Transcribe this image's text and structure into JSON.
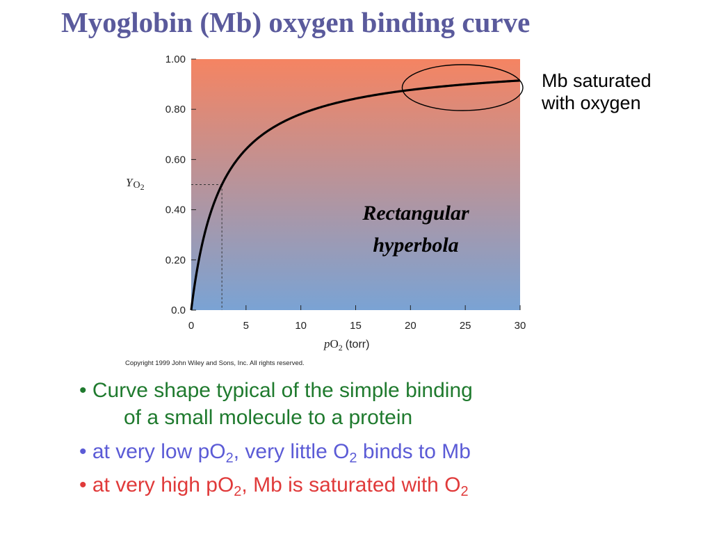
{
  "slide": {
    "title": "Myoglobin (Mb) oxygen binding curve",
    "title_color": "#5a5a9c",
    "side_note_line1": "Mb saturated",
    "side_note_line2": "with oxygen",
    "copyright": "Copyright 1999 John Wiley and Sons, Inc. All rights reserved."
  },
  "bullets": [
    {
      "marker": "•",
      "color": "#1f7a2e",
      "line1": "Curve shape typical of the simple binding",
      "line2": "of a small molecule to a protein"
    },
    {
      "marker": "•",
      "color": "#5b5bd6",
      "t1": "at very low pO",
      "s1": "2",
      "t2": ", very little O",
      "s2": "2",
      "t3": " binds to Mb"
    },
    {
      "marker": "•",
      "color": "#e03a3a",
      "t1": "at very high pO",
      "s1": "2",
      "t2": ", Mb is saturated with O",
      "s2": "2"
    }
  ],
  "chart_data": {
    "type": "line",
    "xlabel_italic": "p",
    "xlabel_main": "O",
    "xlabel_sub": "2",
    "xlabel_unit": "(torr)",
    "ylabel_italic": "Y",
    "ylabel_main": "O",
    "ylabel_sub": "2",
    "xlim": [
      0,
      30
    ],
    "ylim": [
      0,
      1.0
    ],
    "x_ticks": [
      "0",
      "5",
      "10",
      "15",
      "20",
      "25",
      "30"
    ],
    "y_ticks": [
      "0.0",
      "0.20",
      "0.40",
      "0.60",
      "0.80",
      "1.00"
    ],
    "curve": {
      "equation": "Y = pO2 / (P50 + pO2)",
      "P50": 2.8
    },
    "reference_point": {
      "x": 2.8,
      "y": 0.5
    },
    "annotation_line1": "Rectangular",
    "annotation_line2": "hyperbola",
    "highlight_region": {
      "x_from": 19.5,
      "x_to": 30
    },
    "background_gradient": {
      "top": "#f58462",
      "bottom": "#7aa3d4"
    },
    "grid": false,
    "legend": "none"
  }
}
